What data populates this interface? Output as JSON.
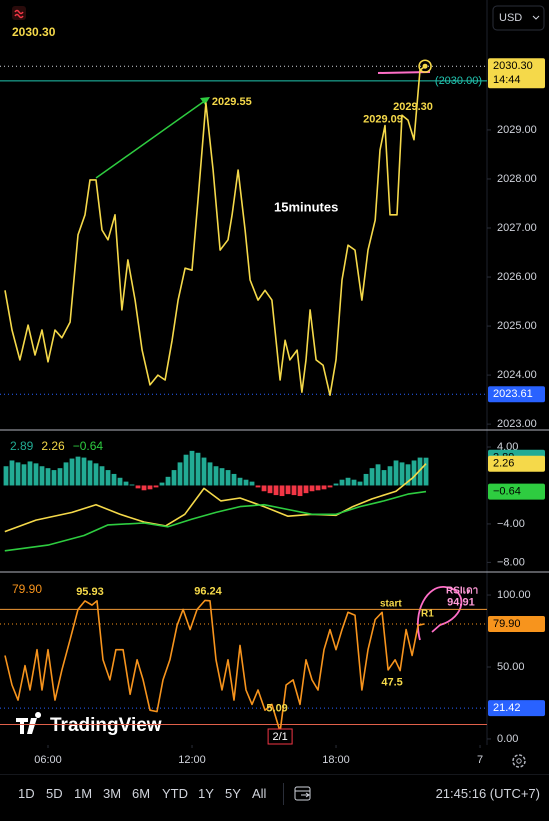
{
  "currency": "USD",
  "brand": "TradingView",
  "toolbar": {
    "ranges": [
      "1D",
      "5D",
      "1M",
      "3M",
      "6M",
      "YTD",
      "1Y",
      "5Y",
      "All"
    ],
    "clock": "21:45:16 (UTC+7)"
  },
  "chart_data": [
    {
      "type": "line",
      "current": {
        "value": 2030.3,
        "label": "2030.30"
      },
      "countdown": "14:44",
      "color": "#f5d94a",
      "xlim": [
        4,
        24.29
      ],
      "ylim": [
        2022.88,
        2031.65
      ],
      "yticks": [
        {
          "value": 2023,
          "label": "2023.00"
        },
        {
          "value": 2024,
          "label": "2024.00"
        },
        {
          "value": 2025,
          "label": "2025.00"
        },
        {
          "value": 2026,
          "label": "2026.00"
        },
        {
          "value": 2027,
          "label": "2027.00"
        },
        {
          "value": 2028,
          "label": "2028.00"
        },
        {
          "value": 2029,
          "label": "2029.00"
        }
      ],
      "x": [
        4.21,
        4.5,
        4.83,
        5.17,
        5.46,
        5.75,
        6,
        6.29,
        6.58,
        6.92,
        7.25,
        7.54,
        7.75,
        8,
        8.25,
        8.5,
        8.79,
        9.08,
        9.33,
        9.63,
        9.92,
        10.25,
        10.58,
        10.88,
        11.17,
        11.42,
        11.71,
        12,
        12.25,
        12.58,
        12.88,
        13.17,
        13.5,
        13.67,
        13.92,
        14.21,
        14.42,
        14.75,
        15.04,
        15.33,
        15.67,
        15.88,
        16.08,
        16.38,
        16.58,
        16.75,
        16.92,
        17.17,
        17.46,
        17.75,
        18,
        18.25,
        18.5,
        18.79,
        19.08,
        19.33,
        19.63,
        19.83,
        20.04,
        20.25,
        20.54,
        20.75,
        21,
        21.25,
        21.5,
        21.71
      ],
      "values": [
        2025.73,
        2024.92,
        2024.31,
        2025.02,
        2024.41,
        2024.92,
        2024.27,
        2024.92,
        2024.76,
        2025.08,
        2026.86,
        2027.27,
        2027.98,
        2027.98,
        2026.96,
        2026.76,
        2027.27,
        2025.33,
        2026.35,
        2025.53,
        2024.51,
        2023.8,
        2024.0,
        2023.9,
        2024.71,
        2025.53,
        2026.18,
        2026.14,
        2027.57,
        2029.55,
        2028.18,
        2026.55,
        2026.76,
        2027.27,
        2028.18,
        2026.96,
        2025.94,
        2025.53,
        2025.73,
        2025.53,
        2023.9,
        2024.71,
        2024.31,
        2024.51,
        2023.65,
        2024.31,
        2025.33,
        2024.31,
        2024.2,
        2023.59,
        2024.31,
        2025.94,
        2026.65,
        2026.55,
        2025.53,
        2026.55,
        2027.16,
        2028.59,
        2029.09,
        2027.27,
        2027.27,
        2029.3,
        2029.2,
        2028.8,
        2030.22,
        2030.3
      ],
      "price_lines": [
        {
          "value": 2030,
          "label": "(2030.00)",
          "color": "#22c5b0"
        },
        {
          "value": 2023.61,
          "label": "2023.61",
          "color": "#2962ff"
        }
      ],
      "annotations": [
        {
          "x": 12.58,
          "value": 2029.55,
          "label": "2029.55"
        },
        {
          "x": 20.04,
          "value": 2029.09,
          "label": "2029.09"
        },
        {
          "x": 20.75,
          "value": 2029.3,
          "label": "2029.30"
        }
      ],
      "text_annotations": [
        "15minutes"
      ]
    },
    {
      "type": "macd",
      "xlim": [
        4,
        24.29
      ],
      "ylim": [
        -9.0,
        5.77
      ],
      "yticks": [
        {
          "value": 4,
          "label": "4.00"
        },
        {
          "value": -4,
          "label": "−4.00"
        },
        {
          "value": -8,
          "label": "−8.00"
        }
      ],
      "series": [
        {
          "style": "columns",
          "color": "#22ab94",
          "negative_color": "#f23645",
          "last": {
            "value": 2.89,
            "label": "2.89"
          },
          "x": [
            4.25,
            4.5,
            4.75,
            5,
            5.25,
            5.5,
            5.75,
            6,
            6.25,
            6.5,
            6.75,
            7,
            7.25,
            7.5,
            7.75,
            8,
            8.25,
            8.5,
            8.75,
            9,
            9.25,
            9.5,
            9.75,
            10,
            10.25,
            10.5,
            10.75,
            11,
            11.25,
            11.5,
            11.75,
            12,
            12.25,
            12.5,
            12.75,
            13,
            13.25,
            13.5,
            13.75,
            14,
            14.25,
            14.5,
            14.75,
            15,
            15.25,
            15.5,
            15.75,
            16,
            16.25,
            16.5,
            16.75,
            17,
            17.25,
            17.5,
            17.75,
            18,
            18.25,
            18.5,
            18.75,
            19,
            19.25,
            19.5,
            19.75,
            20,
            20.25,
            20.5,
            20.75,
            21,
            21.25,
            21.5,
            21.75
          ],
          "values": [
            2.0,
            2.6,
            2.4,
            2.2,
            2.5,
            2.3,
            2.0,
            1.8,
            1.6,
            1.8,
            2.4,
            2.8,
            3.0,
            2.9,
            2.6,
            2.3,
            2.0,
            1.6,
            1.2,
            0.8,
            0.4,
            0.1,
            -0.3,
            -0.5,
            -0.4,
            -0.2,
            0.3,
            0.9,
            1.6,
            2.4,
            3.2,
            3.6,
            3.4,
            2.9,
            2.4,
            2.0,
            1.8,
            1.6,
            1.2,
            0.8,
            0.6,
            0.4,
            -0.2,
            -0.6,
            -0.8,
            -1.0,
            -1.1,
            -0.9,
            -1.0,
            -1.1,
            -0.8,
            -0.6,
            -0.5,
            -0.4,
            -0.2,
            0.2,
            0.6,
            0.8,
            0.6,
            0.4,
            1.2,
            1.8,
            2.2,
            1.6,
            2.0,
            2.6,
            2.4,
            2.2,
            2.6,
            2.9,
            2.89
          ]
        },
        {
          "style": "line",
          "color": "#f5d94a",
          "last": {
            "value": 2.26,
            "label": "2.26"
          },
          "x": [
            4.2,
            5.5,
            7.0,
            8.0,
            9.0,
            10.0,
            10.9,
            11.7,
            12.5,
            13.2,
            14.0,
            15.0,
            16.0,
            17.0,
            18.0,
            18.7,
            19.5,
            20.5,
            21.2,
            21.75
          ],
          "values": [
            -4.8,
            -3.6,
            -2.8,
            -2.0,
            -3.0,
            -3.8,
            -4.2,
            -3.0,
            -0.3,
            -1.6,
            -1.3,
            -2.2,
            -3.2,
            -3.0,
            -3.1,
            -2.2,
            -1.4,
            -0.6,
            0.8,
            2.26
          ]
        },
        {
          "style": "line",
          "color": "#2ecc40",
          "last": {
            "value": -0.64,
            "label": "−0.64"
          },
          "x": [
            4.2,
            6.0,
            7.5,
            8.5,
            10.0,
            11.0,
            12.0,
            13.0,
            14.0,
            15.0,
            16.0,
            17.0,
            18.0,
            19.0,
            20.0,
            21.0,
            21.75
          ],
          "values": [
            -6.8,
            -6.2,
            -5.2,
            -4.1,
            -3.9,
            -4.3,
            -3.5,
            -2.8,
            -2.2,
            -2.0,
            -2.5,
            -3.0,
            -3.0,
            -2.2,
            -1.6,
            -0.9,
            -0.64
          ]
        }
      ]
    },
    {
      "type": "line",
      "current": {
        "value": 79.9,
        "label": "79.90"
      },
      "color": "#f7941d",
      "xlim": [
        4,
        24.29
      ],
      "ylim": [
        -4.2,
        116
      ],
      "yticks": [
        {
          "value": 0,
          "label": "0.00"
        },
        {
          "value": 50,
          "label": "50.00"
        },
        {
          "value": 100,
          "label": "100.00"
        }
      ],
      "xticks": [
        {
          "value": 6,
          "label": "06:00"
        },
        {
          "value": 12,
          "label": "12:00"
        },
        {
          "value": 18,
          "label": "18:00"
        },
        {
          "value": 24,
          "label": "7"
        }
      ],
      "x": [
        4.21,
        4.5,
        4.75,
        5.04,
        5.25,
        5.54,
        5.75,
        6,
        6.29,
        6.58,
        6.92,
        7.25,
        7.54,
        7.83,
        8.04,
        8.29,
        8.58,
        8.83,
        9.13,
        9.42,
        9.71,
        9.96,
        10.25,
        10.54,
        10.79,
        11.08,
        11.38,
        11.63,
        11.92,
        12.21,
        12.54,
        12.75,
        13,
        13.25,
        13.5,
        13.75,
        14,
        14.25,
        14.5,
        14.75,
        15.04,
        15.33,
        15.67,
        15.92,
        16.21,
        16.5,
        16.75,
        17,
        17.25,
        17.5,
        17.75,
        18,
        18.25,
        18.5,
        18.79,
        19.08,
        19.33,
        19.63,
        19.92,
        20.17,
        20.46,
        20.67,
        20.92,
        21.17,
        21.42,
        21.67
      ],
      "values": [
        58,
        37.5,
        27,
        51,
        34,
        62,
        34,
        62,
        27,
        48,
        69,
        90,
        95.93,
        93,
        96,
        55,
        41,
        62,
        62,
        31,
        55,
        41,
        20,
        19,
        41,
        55,
        79,
        90,
        76,
        90,
        96.24,
        96,
        55,
        34,
        55,
        27,
        65,
        34,
        24,
        34,
        20,
        24,
        5.09,
        37.5,
        41,
        24,
        55,
        41,
        34,
        62,
        76,
        62,
        76,
        88,
        86,
        34,
        62,
        83,
        88,
        48,
        55,
        47.5,
        76,
        58,
        79,
        79.9
      ],
      "levels": [
        {
          "value": 90,
          "color": "#f29a37"
        },
        {
          "value": 10,
          "color": "#e0604a"
        }
      ],
      "price_lines": [
        {
          "value": 21.42,
          "label": "21.42",
          "color": "#2962ff"
        }
      ],
      "annotations": [
        {
          "x": 7.54,
          "value": 95.93,
          "label": "95.93"
        },
        {
          "x": 12.54,
          "value": 96.24,
          "label": "96.24"
        },
        {
          "x": 15.67,
          "value": 5.09,
          "label": "5.09"
        },
        {
          "x": 20.67,
          "value": 47.5,
          "label": "47.5"
        },
        {
          "x": 22.63,
          "value": 94.91,
          "label": "94.91"
        }
      ],
      "text_annotations": [
        "start",
        "R1",
        "RSIเดา"
      ],
      "date_marker": {
        "value": 15.67,
        "label": "2/1"
      }
    }
  ]
}
